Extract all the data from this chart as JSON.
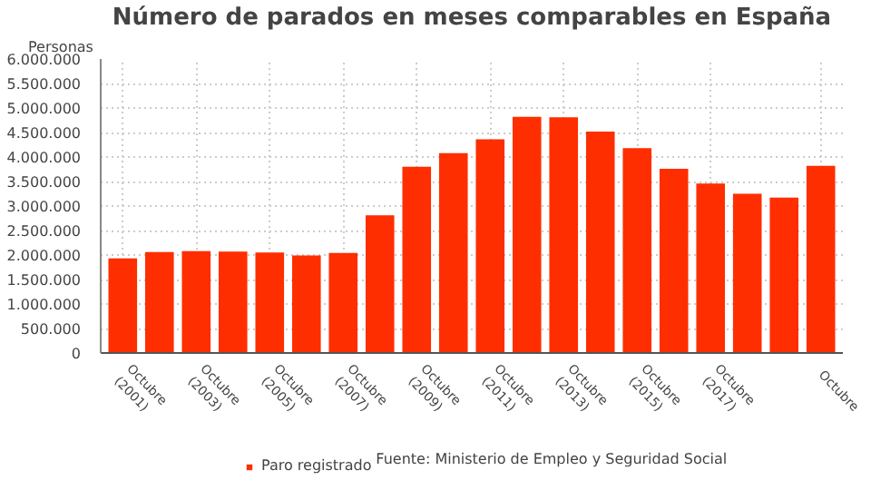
{
  "chart_data": {
    "type": "bar",
    "title": "Número de parados en meses comparables en España",
    "ylabel": "Personas",
    "categories": [
      "Octubre (2001)",
      null,
      "Octubre (2003)",
      null,
      "Octubre (2005)",
      null,
      "Octubre (2007)",
      null,
      "Octubre (2009)",
      null,
      "Octubre (2011)",
      null,
      "Octubre (2013)",
      null,
      "Octubre (2015)",
      null,
      "Octubre (2017)",
      null,
      null,
      "Octubre"
    ],
    "series": [
      {
        "name": "Paro registrado",
        "color": "#ff2e00",
        "values": [
          1930000,
          2060000,
          2080000,
          2070000,
          2050000,
          1990000,
          2040000,
          2810000,
          3800000,
          4080000,
          4360000,
          4820000,
          4810000,
          4520000,
          4180000,
          3760000,
          3460000,
          3250000,
          3170000,
          3820000
        ]
      }
    ],
    "ylim": [
      0,
      6000000
    ],
    "yticks": [
      {
        "value": 0,
        "label": "0"
      },
      {
        "value": 500000,
        "label": "500.000"
      },
      {
        "value": 1000000,
        "label": "1.000.000"
      },
      {
        "value": 1500000,
        "label": "1.500.000"
      },
      {
        "value": 2000000,
        "label": "2.000.000"
      },
      {
        "value": 2500000,
        "label": "2.500.000"
      },
      {
        "value": 3000000,
        "label": "3.000.000"
      },
      {
        "value": 3500000,
        "label": "3.500.000"
      },
      {
        "value": 4000000,
        "label": "4.000.000"
      },
      {
        "value": 4500000,
        "label": "4.500.000"
      },
      {
        "value": 5000000,
        "label": "5.000.000"
      },
      {
        "value": 5500000,
        "label": "5.500.000"
      },
      {
        "value": 6000000,
        "label": "6.000.000"
      }
    ],
    "grid": true,
    "legend": "bottom",
    "annotations": [
      "Fuente: Ministerio de Empleo y Seguridad Social"
    ]
  }
}
